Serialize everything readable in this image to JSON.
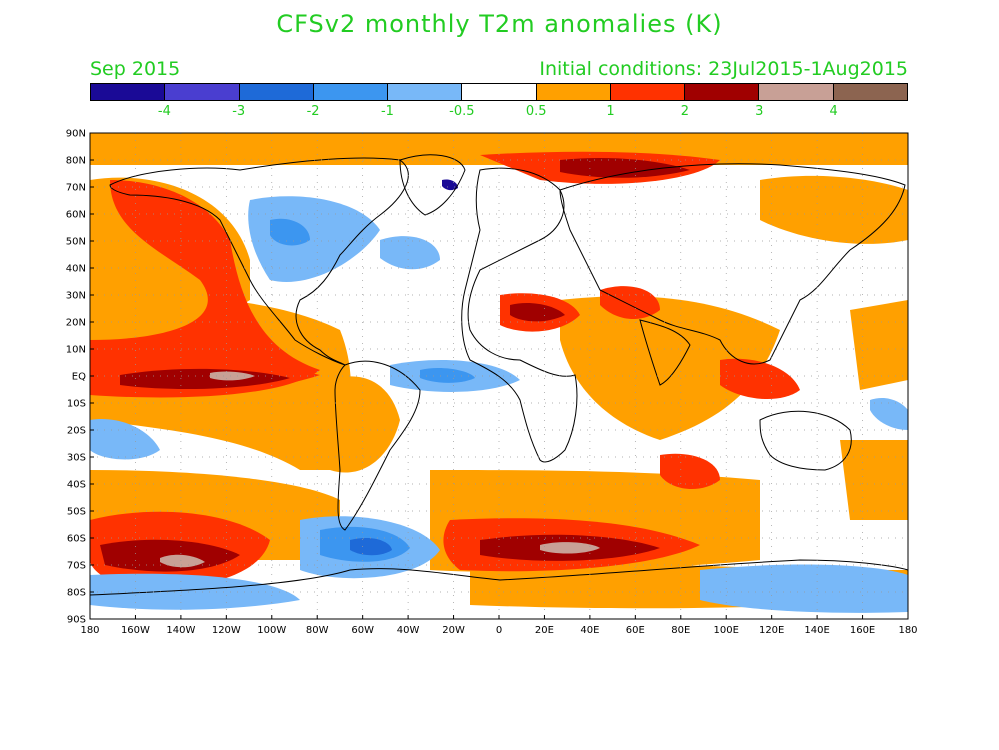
{
  "header": {
    "title": "CFSv2 monthly T2m anomalies (K)",
    "month": "Sep 2015",
    "initial_conditions": "Initial conditions: 23Jul2015-1Aug2015"
  },
  "colorbar": {
    "colors": [
      "#1a0a96",
      "#4a3ed0",
      "#1e6ad8",
      "#3c96f0",
      "#78b8f8",
      "#ffffff",
      "#ffa000",
      "#ff3200",
      "#a00000",
      "#c8a096",
      "#8c6450"
    ],
    "labels": [
      "-4",
      "-3",
      "-2",
      "-1",
      "-0.5",
      "0.5",
      "1",
      "2",
      "3",
      "4"
    ]
  },
  "map": {
    "lat_labels": [
      "90N",
      "80N",
      "70N",
      "60N",
      "50N",
      "40N",
      "30N",
      "20N",
      "10N",
      "EQ",
      "10S",
      "20S",
      "30S",
      "40S",
      "50S",
      "60S",
      "70S",
      "80S",
      "90S"
    ],
    "lon_labels": [
      "180",
      "160W",
      "140W",
      "120W",
      "100W",
      "80W",
      "60W",
      "40W",
      "20W",
      "0",
      "20E",
      "40E",
      "60E",
      "80E",
      "100E",
      "120E",
      "140E",
      "160E",
      "180"
    ]
  }
}
